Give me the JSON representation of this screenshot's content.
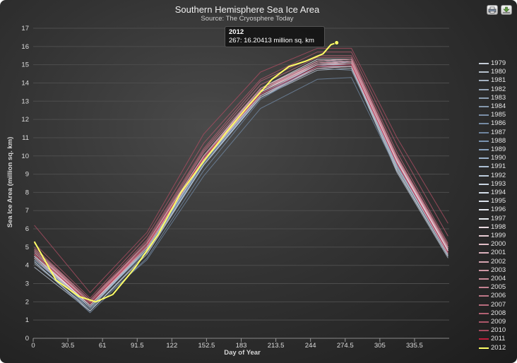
{
  "chart_data": {
    "type": "line",
    "title": "Southern Hemisphere Sea Ice Area",
    "subtitle": "Source: The Cryosphere Today",
    "xlabel": "Day of Year",
    "ylabel": "Sea Ice Area (million sq. km)",
    "xlim": [
      0,
      366
    ],
    "ylim": [
      0,
      17
    ],
    "x_ticks": [
      "0",
      "30.5",
      "61",
      "91.5",
      "122",
      "152.5",
      "183",
      "213.5",
      "244",
      "274.5",
      "305",
      "335.5"
    ],
    "x_tick_values": [
      0,
      30.5,
      61,
      91.5,
      122,
      152.5,
      183,
      213.5,
      244,
      274.5,
      305,
      335.5
    ],
    "y_ticks": [
      "0",
      "1",
      "2",
      "3",
      "4",
      "5",
      "6",
      "7",
      "8",
      "9",
      "10",
      "11",
      "12",
      "13",
      "14",
      "15",
      "16",
      "17"
    ],
    "grid": true,
    "legend_position": "right",
    "series": [
      {
        "name": "1979",
        "color": "#c4ccd6",
        "x": [
          1,
          50,
          100,
          150,
          200,
          250,
          280,
          320,
          365
        ],
        "y": [
          4.3,
          1.8,
          4.9,
          9.7,
          13.3,
          14.8,
          14.9,
          9.3,
          4.5
        ]
      },
      {
        "name": "1980",
        "color": "#b6c0cc",
        "x": [
          1,
          50,
          100,
          150,
          200,
          250,
          280,
          320,
          365
        ],
        "y": [
          3.9,
          1.5,
          4.7,
          9.5,
          13.2,
          14.7,
          14.8,
          9.1,
          4.4
        ]
      },
      {
        "name": "1981",
        "color": "#a5b2c1",
        "x": [
          1,
          50,
          100,
          150,
          200,
          250,
          280,
          320,
          365
        ],
        "y": [
          4.1,
          1.6,
          4.9,
          9.7,
          13.4,
          15.0,
          15.0,
          9.5,
          4.6
        ]
      },
      {
        "name": "1982",
        "color": "#97a6b8",
        "x": [
          1,
          50,
          100,
          150,
          200,
          250,
          280,
          320,
          365
        ],
        "y": [
          4.4,
          1.7,
          5.0,
          9.8,
          13.5,
          15.1,
          15.1,
          9.6,
          4.7
        ]
      },
      {
        "name": "1983",
        "color": "#8ea0b3",
        "x": [
          1,
          50,
          100,
          150,
          200,
          250,
          280,
          320,
          365
        ],
        "y": [
          4.6,
          1.8,
          5.1,
          9.9,
          13.6,
          15.2,
          15.2,
          9.7,
          4.8
        ]
      },
      {
        "name": "1984",
        "color": "#8598ad",
        "x": [
          1,
          50,
          100,
          150,
          200,
          250,
          280,
          320,
          365
        ],
        "y": [
          4.5,
          1.7,
          4.9,
          9.6,
          13.2,
          14.8,
          14.7,
          9.4,
          4.6
        ]
      },
      {
        "name": "1985",
        "color": "#7b8fa8",
        "x": [
          1,
          50,
          100,
          150,
          200,
          250,
          280,
          320,
          365
        ],
        "y": [
          4.7,
          1.9,
          5.1,
          9.8,
          13.4,
          15.0,
          15.1,
          9.8,
          4.9
        ]
      },
      {
        "name": "1986",
        "color": "#768ba4",
        "x": [
          1,
          50,
          100,
          150,
          200,
          250,
          280,
          320,
          365
        ],
        "y": [
          4.2,
          1.4,
          4.4,
          9.2,
          13.1,
          14.9,
          15.2,
          9.9,
          4.9
        ]
      },
      {
        "name": "1987",
        "color": "#6f859f",
        "x": [
          1,
          50,
          100,
          150,
          200,
          250,
          280,
          320,
          365
        ],
        "y": [
          4.4,
          1.6,
          4.3,
          8.9,
          12.6,
          14.2,
          14.3,
          9.2,
          4.5
        ]
      },
      {
        "name": "1988",
        "color": "#7a93b0",
        "x": [
          1,
          50,
          100,
          150,
          200,
          250,
          280,
          320,
          365
        ],
        "y": [
          4.5,
          1.7,
          4.8,
          9.6,
          13.3,
          14.9,
          14.9,
          9.6,
          4.7
        ]
      },
      {
        "name": "1989",
        "color": "#8aa3bf",
        "x": [
          1,
          50,
          100,
          150,
          200,
          250,
          280,
          320,
          365
        ],
        "y": [
          4.3,
          1.7,
          4.8,
          9.5,
          13.3,
          15.0,
          15.0,
          9.5,
          4.6
        ]
      },
      {
        "name": "1990",
        "color": "#9bb2cb",
        "x": [
          1,
          50,
          100,
          150,
          200,
          250,
          280,
          320,
          365
        ],
        "y": [
          4.6,
          1.8,
          5.0,
          9.8,
          13.5,
          15.1,
          15.1,
          9.6,
          4.8
        ]
      },
      {
        "name": "1991",
        "color": "#adc0d5",
        "x": [
          1,
          50,
          100,
          150,
          200,
          250,
          280,
          320,
          365
        ],
        "y": [
          4.5,
          1.8,
          5.0,
          9.8,
          13.4,
          15.0,
          15.0,
          9.7,
          4.8
        ]
      },
      {
        "name": "1992",
        "color": "#bccbdc",
        "x": [
          1,
          50,
          100,
          150,
          200,
          250,
          280,
          320,
          365
        ],
        "y": [
          4.4,
          1.7,
          4.9,
          9.7,
          13.4,
          15.0,
          15.0,
          9.4,
          4.7
        ]
      },
      {
        "name": "1993",
        "color": "#c9d5e2",
        "x": [
          1,
          50,
          100,
          150,
          200,
          250,
          280,
          320,
          365
        ],
        "y": [
          4.2,
          1.5,
          4.6,
          9.5,
          13.2,
          14.9,
          14.9,
          9.2,
          4.5
        ]
      },
      {
        "name": "1994",
        "color": "#d3dce8",
        "x": [
          1,
          50,
          100,
          150,
          200,
          250,
          280,
          320,
          365
        ],
        "y": [
          4.5,
          1.8,
          5.1,
          9.9,
          13.5,
          15.1,
          15.2,
          9.8,
          4.8
        ]
      },
      {
        "name": "1995",
        "color": "#dce3ec",
        "x": [
          1,
          50,
          100,
          150,
          200,
          250,
          280,
          320,
          365
        ],
        "y": [
          4.6,
          1.9,
          5.1,
          9.9,
          13.6,
          15.2,
          15.3,
          9.8,
          4.9
        ]
      },
      {
        "name": "1996",
        "color": "#e4e9f0",
        "x": [
          1,
          50,
          100,
          150,
          200,
          250,
          280,
          320,
          365
        ],
        "y": [
          4.8,
          2.0,
          5.2,
          10.0,
          13.7,
          15.3,
          15.3,
          9.9,
          5.0
        ]
      },
      {
        "name": "1997",
        "color": "#ecf0f4",
        "x": [
          1,
          50,
          100,
          150,
          200,
          250,
          280,
          320,
          365
        ],
        "y": [
          4.6,
          1.8,
          5.0,
          9.8,
          13.5,
          15.1,
          15.2,
          9.7,
          4.8
        ]
      },
      {
        "name": "1998",
        "color": "#eadbe0",
        "x": [
          1,
          50,
          100,
          150,
          200,
          250,
          280,
          320,
          365
        ],
        "y": [
          4.5,
          1.8,
          5.0,
          9.8,
          13.5,
          15.1,
          15.2,
          9.8,
          4.8
        ]
      },
      {
        "name": "1999",
        "color": "#e6cbd3",
        "x": [
          1,
          50,
          100,
          150,
          200,
          250,
          280,
          320,
          365
        ],
        "y": [
          4.6,
          1.9,
          5.1,
          9.9,
          13.6,
          15.1,
          15.1,
          9.7,
          4.8
        ]
      },
      {
        "name": "2000",
        "color": "#e0bdc6",
        "x": [
          1,
          50,
          100,
          150,
          200,
          250,
          280,
          320,
          365
        ],
        "y": [
          4.7,
          2.0,
          5.2,
          10.0,
          13.7,
          15.2,
          15.3,
          9.9,
          4.9
        ]
      },
      {
        "name": "2001",
        "color": "#dab0bb",
        "x": [
          1,
          50,
          100,
          150,
          200,
          250,
          280,
          320,
          365
        ],
        "y": [
          4.8,
          1.9,
          5.1,
          9.9,
          13.5,
          15.0,
          15.1,
          9.8,
          4.9
        ]
      },
      {
        "name": "2002",
        "color": "#d5a4b0",
        "x": [
          1,
          50,
          100,
          150,
          200,
          250,
          280,
          320,
          365
        ],
        "y": [
          4.4,
          1.8,
          5.0,
          9.8,
          13.3,
          14.8,
          14.9,
          9.6,
          4.6
        ]
      },
      {
        "name": "2003",
        "color": "#cf98a5",
        "x": [
          1,
          50,
          100,
          150,
          200,
          250,
          280,
          320,
          365
        ],
        "y": [
          4.9,
          2.1,
          5.2,
          10.0,
          13.6,
          15.0,
          15.1,
          9.8,
          4.9
        ]
      },
      {
        "name": "2004",
        "color": "#ca8d9b",
        "x": [
          1,
          50,
          100,
          150,
          200,
          250,
          280,
          320,
          365
        ],
        "y": [
          4.8,
          2.0,
          5.1,
          9.9,
          13.6,
          15.1,
          15.2,
          9.9,
          5.0
        ]
      },
      {
        "name": "2005",
        "color": "#c48291",
        "x": [
          1,
          50,
          100,
          150,
          200,
          250,
          280,
          320,
          365
        ],
        "y": [
          4.7,
          1.9,
          5.0,
          9.8,
          13.6,
          15.2,
          15.3,
          10.0,
          5.0
        ]
      },
      {
        "name": "2006",
        "color": "#be7787",
        "x": [
          1,
          50,
          100,
          150,
          200,
          250,
          280,
          320,
          365
        ],
        "y": [
          4.9,
          2.0,
          5.2,
          10.2,
          13.7,
          15.1,
          15.2,
          9.9,
          5.0
        ]
      },
      {
        "name": "2007",
        "color": "#b86c7d",
        "x": [
          1,
          50,
          100,
          150,
          200,
          250,
          280,
          320,
          365
        ],
        "y": [
          4.8,
          2.0,
          5.3,
          10.3,
          13.9,
          15.4,
          15.4,
          10.0,
          5.1
        ]
      },
      {
        "name": "2008",
        "color": "#b26173",
        "x": [
          1,
          50,
          100,
          150,
          200,
          250,
          280,
          320,
          365
        ],
        "y": [
          5.0,
          2.1,
          5.4,
          10.4,
          14.1,
          15.5,
          15.5,
          10.2,
          5.2
        ]
      },
      {
        "name": "2009",
        "color": "#ab5669",
        "x": [
          1,
          50,
          100,
          150,
          200,
          250,
          280,
          320,
          365
        ],
        "y": [
          5.2,
          2.2,
          5.6,
          10.7,
          14.2,
          15.7,
          15.7,
          10.6,
          5.6
        ]
      },
      {
        "name": "2010",
        "color": "#a44b5f",
        "x": [
          1,
          50,
          100,
          150,
          200,
          250,
          280,
          320,
          365
        ],
        "y": [
          6.2,
          2.5,
          5.8,
          11.2,
          14.6,
          15.9,
          15.9,
          11.0,
          6.3
        ]
      },
      {
        "name": "2011",
        "color": "#c11e3c",
        "x": [
          1,
          50,
          100,
          150,
          200,
          250,
          280,
          320,
          365
        ],
        "y": [
          4.6,
          1.9,
          5.1,
          9.9,
          13.4,
          14.9,
          15.0,
          9.6,
          4.7
        ]
      },
      {
        "name": "2012",
        "color": "#ffff66",
        "x": [
          1,
          20,
          40,
          55,
          70,
          90,
          110,
          130,
          150,
          170,
          190,
          210,
          225,
          240,
          255,
          262,
          267
        ],
        "y": [
          5.3,
          3.2,
          2.3,
          2.0,
          2.4,
          3.9,
          5.7,
          8.0,
          9.7,
          11.3,
          12.8,
          14.2,
          14.9,
          15.2,
          15.6,
          16.1,
          16.20413
        ]
      }
    ],
    "tooltip": {
      "title": "2012",
      "text": "267: 16.20413 million sq. km",
      "series": "2012",
      "x": 267,
      "y": 16.20413
    }
  }
}
